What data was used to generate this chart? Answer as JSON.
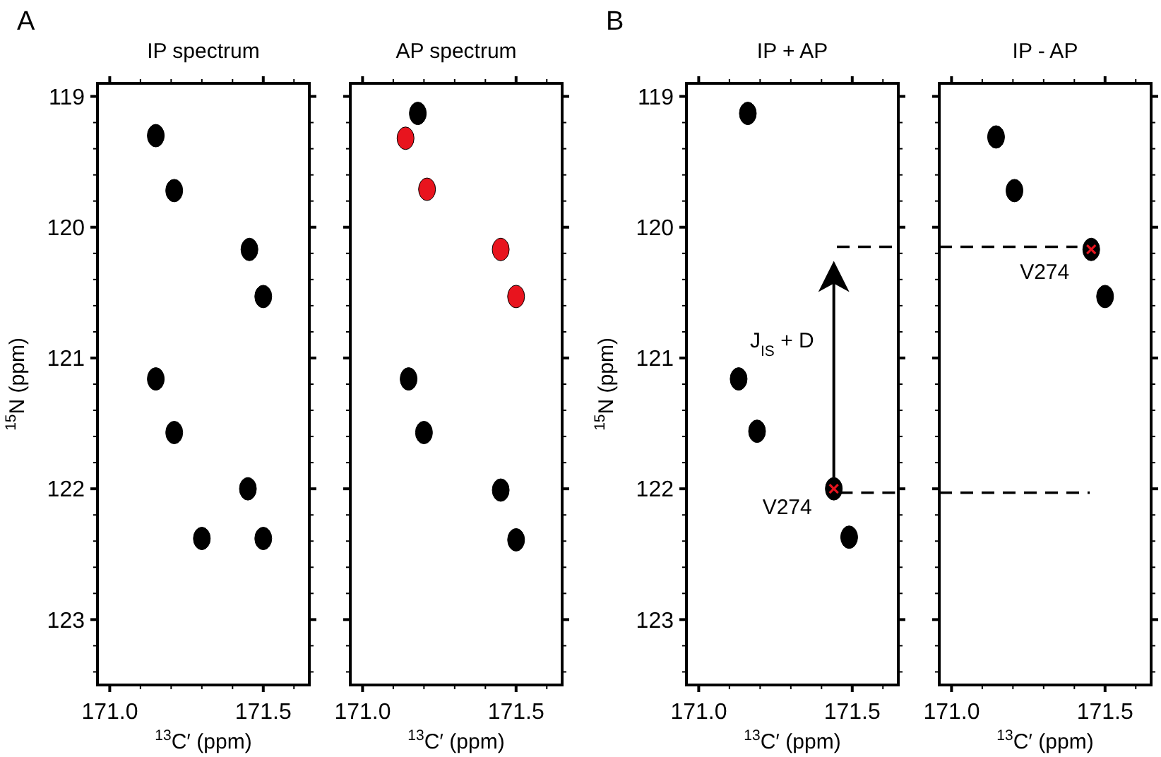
{
  "chart_data": [
    {
      "type": "scatter",
      "title": "IP spectrum",
      "annotations": [
        "A"
      ],
      "xlabel": "$^{13}$C′ (ppm)",
      "ylabel": "$^{15}$N (ppm)",
      "xlim": [
        170.96,
        171.65
      ],
      "ylim": [
        123.5,
        118.9
      ],
      "xticks": [
        {
          "value": 171,
          "label": "171.0"
        },
        {
          "value": 171.1,
          "label": null
        },
        {
          "value": 171.2,
          "label": null
        },
        {
          "value": 171.3,
          "label": null
        },
        {
          "value": 171.4,
          "label": null
        },
        {
          "value": 171.5,
          "label": "171.5"
        },
        {
          "value": 171.6,
          "label": null
        }
      ],
      "yticks": [
        119,
        {
          "value": 119.2,
          "label": null
        },
        {
          "value": 119.4,
          "label": null
        },
        {
          "value": 119.6,
          "label": null
        },
        {
          "value": 119.8,
          "label": null
        },
        120,
        {
          "value": 120.2,
          "label": null
        },
        {
          "value": 120.4,
          "label": null
        },
        {
          "value": 120.6,
          "label": null
        },
        {
          "value": 120.8,
          "label": null
        },
        121,
        {
          "value": 121.2,
          "label": null
        },
        {
          "value": 121.4,
          "label": null
        },
        {
          "value": 121.6,
          "label": null
        },
        {
          "value": 121.8,
          "label": null
        },
        122,
        {
          "value": 122.2,
          "label": null
        },
        {
          "value": 122.4,
          "label": null
        },
        {
          "value": 122.6,
          "label": null
        },
        {
          "value": 122.8,
          "label": null
        },
        123,
        {
          "value": 123.2,
          "label": null
        },
        {
          "value": 123.4,
          "label": null
        }
      ],
      "marker": "circle",
      "series": [
        {
          "color": "#000000",
          "x": [
            171.15,
            171.21,
            171.455,
            171.5,
            171.15,
            171.21,
            171.45,
            171.5,
            171.3
          ],
          "values": [
            119.3,
            119.72,
            120.17,
            120.53,
            121.16,
            121.57,
            122.0,
            122.38,
            122.38
          ]
        }
      ]
    },
    {
      "type": "scatter",
      "title": "AP spectrum",
      "xlabel": "$^{13}$C′ (ppm)",
      "xlim": [
        170.96,
        171.65
      ],
      "ylim": [
        123.5,
        118.9
      ],
      "xticks": [
        {
          "value": 171,
          "label": "171.0"
        },
        {
          "value": 171.1,
          "label": null
        },
        {
          "value": 171.2,
          "label": null
        },
        {
          "value": 171.3,
          "label": null
        },
        {
          "value": 171.4,
          "label": null
        },
        {
          "value": 171.5,
          "label": "171.5"
        },
        {
          "value": 171.6,
          "label": null
        }
      ],
      "yticks": [
        {
          "value": 119,
          "label": null
        },
        {
          "value": 119.2,
          "label": null
        },
        {
          "value": 119.4,
          "label": null
        },
        {
          "value": 119.6,
          "label": null
        },
        {
          "value": 119.8,
          "label": null
        },
        {
          "value": 120,
          "label": null
        },
        {
          "value": 120.2,
          "label": null
        },
        {
          "value": 120.4,
          "label": null
        },
        {
          "value": 120.6,
          "label": null
        },
        {
          "value": 120.8,
          "label": null
        },
        {
          "value": 121,
          "label": null
        },
        {
          "value": 121.2,
          "label": null
        },
        {
          "value": 121.4,
          "label": null
        },
        {
          "value": 121.6,
          "label": null
        },
        {
          "value": 121.8,
          "label": null
        },
        {
          "value": 122,
          "label": null
        },
        {
          "value": 122.2,
          "label": null
        },
        {
          "value": 122.4,
          "label": null
        },
        {
          "value": 122.6,
          "label": null
        },
        {
          "value": 122.8,
          "label": null
        },
        {
          "value": 123,
          "label": null
        },
        {
          "value": 123.2,
          "label": null
        },
        {
          "value": 123.4,
          "label": null
        }
      ],
      "tick_labels": "x",
      "marker": "circle",
      "series": [
        {
          "color": "#000000",
          "x": [
            171.18,
            171.15,
            171.2,
            171.45,
            171.5
          ],
          "values": [
            119.13,
            121.16,
            121.57,
            122.01,
            122.39
          ]
        },
        {
          "color": "#e8141e",
          "x": [
            171.14,
            171.21,
            171.45,
            171.5
          ],
          "values": [
            119.32,
            119.71,
            120.17,
            120.53
          ]
        }
      ]
    },
    {
      "type": "scatter",
      "title": "IP + AP",
      "annotations": [
        "B",
        "J$_{IS}$ + D",
        {
          "text": "V274",
          "x": 171.44,
          "y": 122.0
        }
      ],
      "xlabel": "$^{13}$C′ (ppm)",
      "ylabel": "$^{15}$N (ppm)",
      "xlim": [
        170.96,
        171.65
      ],
      "ylim": [
        123.5,
        118.9
      ],
      "xticks": [
        {
          "value": 171,
          "label": "171.0"
        },
        {
          "value": 171.1,
          "label": null
        },
        {
          "value": 171.2,
          "label": null
        },
        {
          "value": 171.3,
          "label": null
        },
        {
          "value": 171.4,
          "label": null
        },
        {
          "value": 171.5,
          "label": "171.5"
        },
        {
          "value": 171.6,
          "label": null
        }
      ],
      "yticks": [
        119,
        {
          "value": 119.2,
          "label": null
        },
        {
          "value": 119.4,
          "label": null
        },
        {
          "value": 119.6,
          "label": null
        },
        {
          "value": 119.8,
          "label": null
        },
        120,
        {
          "value": 120.2,
          "label": null
        },
        {
          "value": 120.4,
          "label": null
        },
        {
          "value": 120.6,
          "label": null
        },
        {
          "value": 120.8,
          "label": null
        },
        121,
        {
          "value": 121.2,
          "label": null
        },
        {
          "value": 121.4,
          "label": null
        },
        {
          "value": 121.6,
          "label": null
        },
        {
          "value": 121.8,
          "label": null
        },
        122,
        {
          "value": 122.2,
          "label": null
        },
        {
          "value": 122.4,
          "label": null
        },
        {
          "value": 122.6,
          "label": null
        },
        {
          "value": 122.8,
          "label": null
        },
        123,
        {
          "value": 123.2,
          "label": null
        },
        {
          "value": 123.4,
          "label": null
        }
      ],
      "marker": "circle",
      "series": [
        {
          "color": "#000000",
          "x": [
            171.16,
            171.13,
            171.19,
            171.44,
            171.49
          ],
          "values": [
            119.13,
            121.16,
            121.56,
            122.0,
            122.37
          ]
        },
        {
          "color": "#e8141e",
          "marker": "cross",
          "x": [
            171.44
          ],
          "values": [
            122.0
          ]
        },
        {
          "type": "line",
          "marker": "none",
          "line_style": "dashed",
          "color": "#000000",
          "x": [
            171.45,
            171.65
          ],
          "values": [
            120.15,
            120.15
          ]
        },
        {
          "type": "line",
          "marker": "none",
          "line_style": "dashed",
          "color": "#000000",
          "x": [
            171.46,
            171.65
          ],
          "values": [
            122.03,
            122.03
          ]
        }
      ]
    },
    {
      "type": "scatter",
      "title": "IP - AP",
      "annotations": [
        {
          "text": "V274",
          "x": 171.455,
          "y": 120.17
        }
      ],
      "xlabel": "$^{13}$C′ (ppm)",
      "xlim": [
        170.96,
        171.65
      ],
      "ylim": [
        123.5,
        118.9
      ],
      "xticks": [
        {
          "value": 171,
          "label": "171.0"
        },
        {
          "value": 171.1,
          "label": null
        },
        {
          "value": 171.2,
          "label": null
        },
        {
          "value": 171.3,
          "label": null
        },
        {
          "value": 171.4,
          "label": null
        },
        {
          "value": 171.5,
          "label": "171.5"
        },
        {
          "value": 171.6,
          "label": null
        }
      ],
      "yticks": [
        {
          "value": 119,
          "label": null
        },
        {
          "value": 119.2,
          "label": null
        },
        {
          "value": 119.4,
          "label": null
        },
        {
          "value": 119.6,
          "label": null
        },
        {
          "value": 119.8,
          "label": null
        },
        {
          "value": 120,
          "label": null
        },
        {
          "value": 120.2,
          "label": null
        },
        {
          "value": 120.4,
          "label": null
        },
        {
          "value": 120.6,
          "label": null
        },
        {
          "value": 120.8,
          "label": null
        },
        {
          "value": 121,
          "label": null
        },
        {
          "value": 121.2,
          "label": null
        },
        {
          "value": 121.4,
          "label": null
        },
        {
          "value": 121.6,
          "label": null
        },
        {
          "value": 121.8,
          "label": null
        },
        {
          "value": 122,
          "label": null
        },
        {
          "value": 122.2,
          "label": null
        },
        {
          "value": 122.4,
          "label": null
        },
        {
          "value": 122.6,
          "label": null
        },
        {
          "value": 122.8,
          "label": null
        },
        {
          "value": 123,
          "label": null
        },
        {
          "value": 123.2,
          "label": null
        },
        {
          "value": 123.4,
          "label": null
        }
      ],
      "tick_labels": "x",
      "marker": "circle",
      "series": [
        {
          "color": "#000000",
          "x": [
            171.145,
            171.205,
            171.455,
            171.5
          ],
          "values": [
            119.31,
            119.72,
            120.17,
            120.53
          ]
        },
        {
          "color": "#e8141e",
          "marker": "cross",
          "x": [
            171.455
          ],
          "values": [
            120.17
          ]
        },
        {
          "type": "line",
          "marker": "none",
          "line_style": "dashed",
          "color": "#000000",
          "x": [
            170.96,
            171.41
          ],
          "values": [
            120.15,
            120.15
          ]
        },
        {
          "type": "line",
          "marker": "none",
          "line_style": "dashed",
          "color": "#000000",
          "x": [
            170.96,
            171.45
          ],
          "values": [
            122.03,
            122.03
          ]
        }
      ]
    }
  ]
}
